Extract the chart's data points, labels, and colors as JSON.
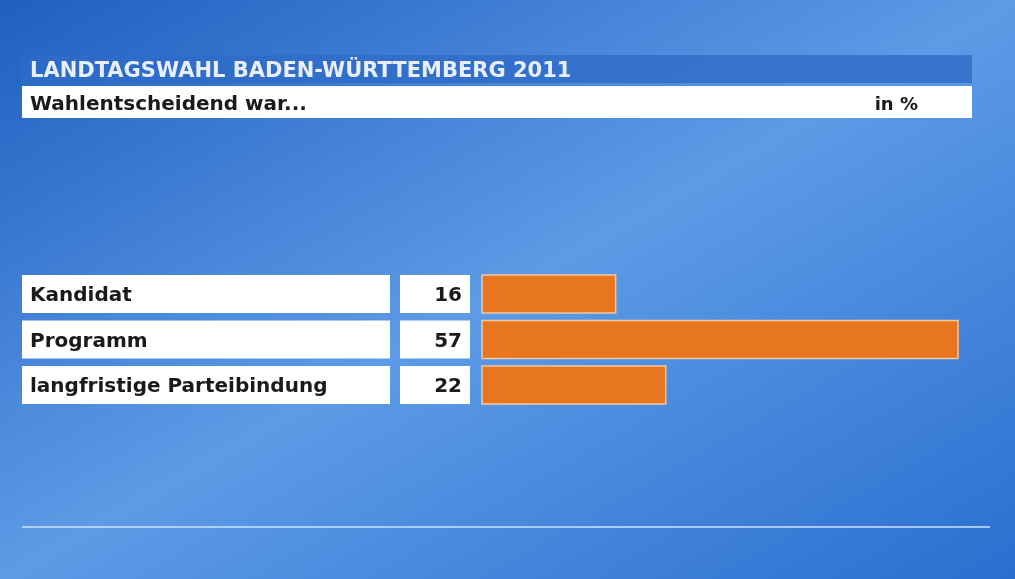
{
  "chart_data": {
    "type": "bar",
    "orientation": "horizontal",
    "title": "LANDTAGSWAHL BADEN-WÜRTTEMBERG 2011",
    "subtitle": "Wahlentscheidend war...",
    "annotations": [
      "in %"
    ],
    "categories": [
      "Kandidat",
      "Programm",
      "langfristige Parteibindung"
    ],
    "values": [
      16,
      57,
      22
    ],
    "color": "#e8761e",
    "data_labels": true
  }
}
